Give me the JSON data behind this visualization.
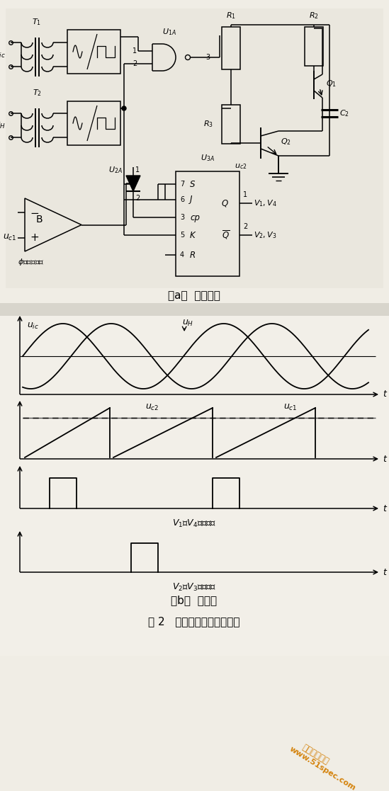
{
  "bg_color": "#f0ede5",
  "line_color": "#000000",
  "title_bottom": "图 2   超前触发脉冲形成电路",
  "label_a": "（a）  电路框图",
  "label_b": "（b）  波形图",
  "watermark_line1": "环球电气之家",
  "watermark_line2": "www.51spec.com",
  "watermark_color": "#d4820a"
}
